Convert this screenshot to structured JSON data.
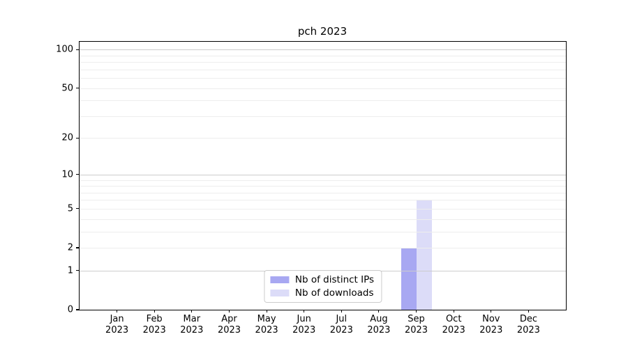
{
  "title": "pch 2023",
  "chart_data": {
    "type": "bar",
    "title": "pch 2023",
    "x_categories": [
      "Jan 2023",
      "Feb 2023",
      "Mar 2023",
      "Apr 2023",
      "May 2023",
      "Jun 2023",
      "Jul 2023",
      "Aug 2023",
      "Sep 2023",
      "Oct 2023",
      "Nov 2023",
      "Dec 2023"
    ],
    "series": [
      {
        "name": "Nb of distinct IPs",
        "color": "#a8a8f2",
        "values": [
          0,
          0,
          0,
          0,
          0,
          0,
          0,
          0,
          2,
          0,
          0,
          0
        ]
      },
      {
        "name": "Nb of downloads",
        "color": "#dcdcf8",
        "values": [
          0,
          0,
          0,
          0,
          0,
          0,
          0,
          0,
          6,
          0,
          0,
          0
        ]
      }
    ],
    "y_axis": {
      "scale": "log1p",
      "tick_values": [
        0,
        1,
        2,
        5,
        10,
        20,
        50,
        100
      ],
      "major_grid_values": [
        1,
        10,
        100
      ],
      "minor_grid_values": [
        2,
        3,
        4,
        5,
        6,
        7,
        8,
        9,
        20,
        30,
        40,
        50,
        60,
        70,
        80,
        90
      ],
      "ylim": [
        0,
        115
      ]
    },
    "legend": {
      "position": "lower center",
      "entries": [
        "Nb of distinct IPs",
        "Nb of downloads"
      ]
    },
    "grid": true,
    "colors": {
      "bar_distinct_ips": "#a8a8f2",
      "bar_downloads": "#dcdcf8",
      "grid_major": "#cccccc",
      "grid_minor": "#ededed",
      "axis": "#000000",
      "background": "#ffffff"
    }
  }
}
